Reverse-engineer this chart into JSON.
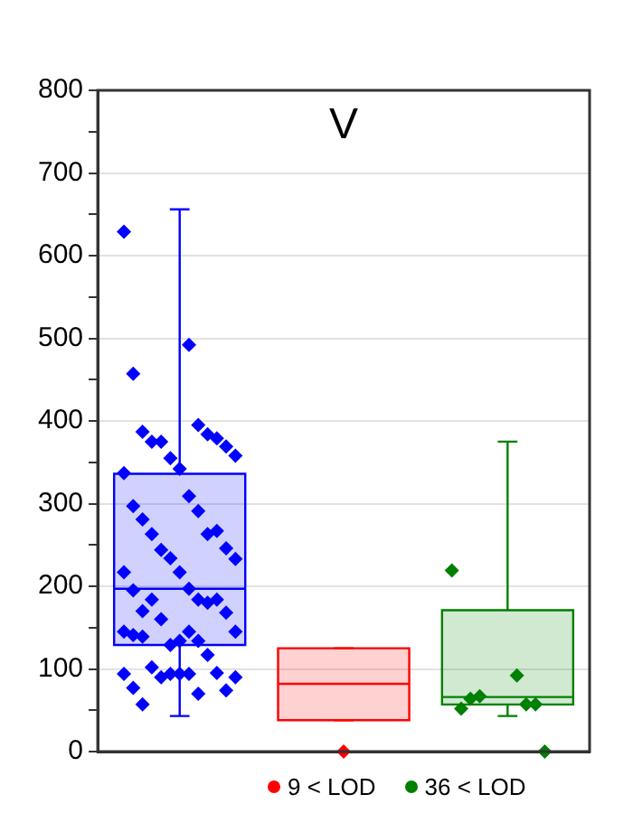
{
  "chart_data": {
    "type": "box",
    "title": "V",
    "categories": [
      null,
      null,
      null
    ],
    "colors": [
      "#0000ff",
      "#ff0000",
      "#008000"
    ],
    "boxes": [
      {
        "low": 43,
        "q1": 129,
        "median": 197,
        "q3": 336,
        "high": 656,
        "outliers": [
          629,
          492,
          457,
          395,
          387,
          384,
          375,
          379,
          375,
          369,
          355,
          358,
          342,
          337,
          309,
          297,
          291,
          281,
          263,
          263,
          267,
          244,
          246,
          234,
          233,
          217,
          217,
          197,
          195,
          184,
          170,
          180,
          184,
          184,
          160,
          168,
          129,
          145,
          134,
          145,
          145,
          141,
          134,
          139,
          117,
          102,
          95,
          90,
          74,
          94,
          90,
          94,
          94,
          94,
          77,
          70,
          57
        ]
      },
      {
        "low": 38,
        "q1": 38,
        "median": 82,
        "q3": 125,
        "high": 125,
        "outliers": [
          0
        ]
      },
      {
        "low": 43,
        "q1": 57,
        "median": 66,
        "q3": 171,
        "high": 375,
        "outliers": [
          219,
          92,
          52,
          57,
          64,
          57,
          67,
          0
        ]
      }
    ],
    "ylim": [
      0,
      800
    ],
    "yticks": [
      0,
      {
        "value": 50,
        "label": null
      },
      100,
      {
        "value": 150,
        "label": null
      },
      200,
      {
        "value": 250,
        "label": null
      },
      300,
      {
        "value": 350,
        "label": null
      },
      400,
      {
        "value": 450,
        "label": null
      },
      500,
      {
        "value": 550,
        "label": null
      },
      600,
      {
        "value": 650,
        "label": null
      },
      700,
      {
        "value": 750,
        "label": null
      },
      800
    ],
    "grid": "y",
    "tick_labels": "y",
    "marker": "diamond",
    "annotations": [
      "9 < LOD",
      "36 < LOD"
    ]
  }
}
